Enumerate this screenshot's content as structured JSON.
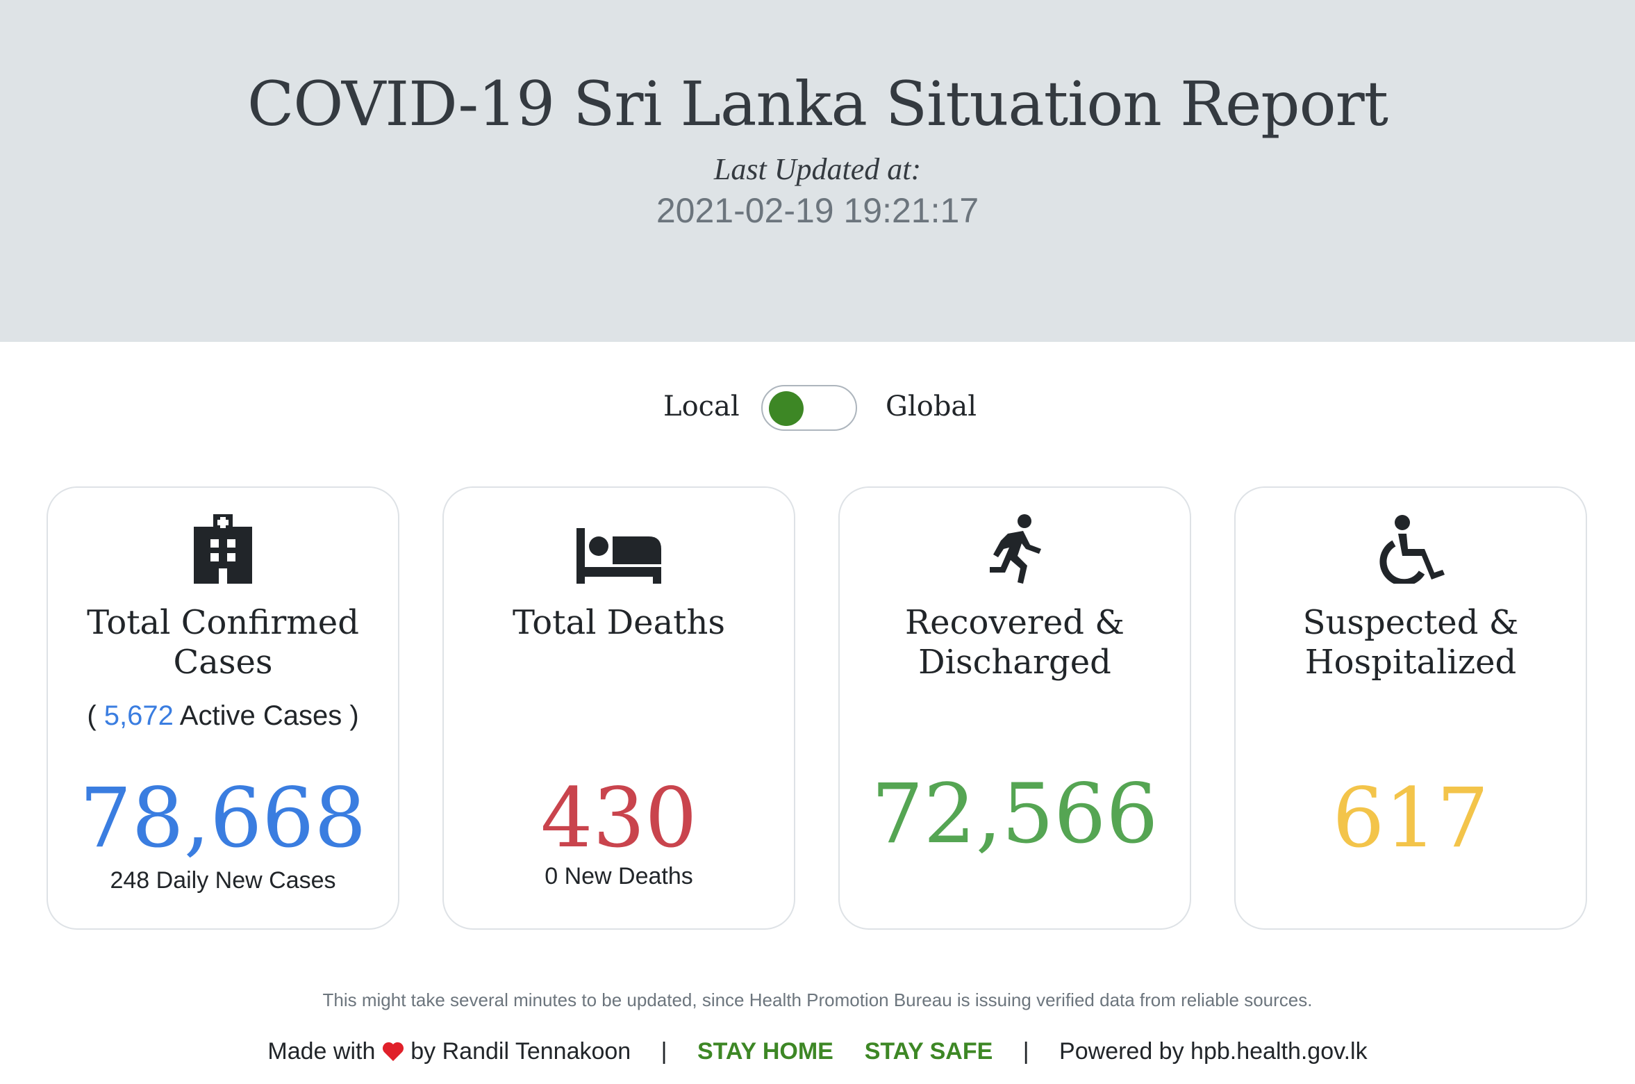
{
  "header": {
    "title": "COVID-19 Sri Lanka Situation Report",
    "last_updated_label": "Last Updated at:",
    "last_updated_value": "2021-02-19 19:21:17"
  },
  "toggle": {
    "left_label": "Local",
    "right_label": "Global",
    "state": "Local"
  },
  "cards": [
    {
      "icon": "hospital-icon",
      "title": "Total Confirmed Cases",
      "active_prefix": "(",
      "active_value": "5,672",
      "active_suffix": "Active Cases )",
      "value": "78,668",
      "sub": "248 Daily New Cases",
      "color": "#3a7de0"
    },
    {
      "icon": "bed-icon",
      "title": "Total Deaths",
      "value": "430",
      "sub": "0 New Deaths",
      "color": "#c9444d"
    },
    {
      "icon": "running-icon",
      "title": "Recovered & Discharged",
      "value": "72,566",
      "color": "#55a553"
    },
    {
      "icon": "wheelchair-icon",
      "title": "Suspected & Hospitalized",
      "value": "617",
      "color": "#f3c44a"
    }
  ],
  "note": "This might take several minutes to be updated, since Health Promotion Bureau is issuing verified data from reliable sources.",
  "footer": {
    "made_with": "Made with",
    "by": "by Randil Tennakoon",
    "separator": "|",
    "stay_home": "STAY HOME",
    "stay_safe": "STAY SAFE",
    "powered_by": "Powered by hpb.health.gov.lk"
  }
}
